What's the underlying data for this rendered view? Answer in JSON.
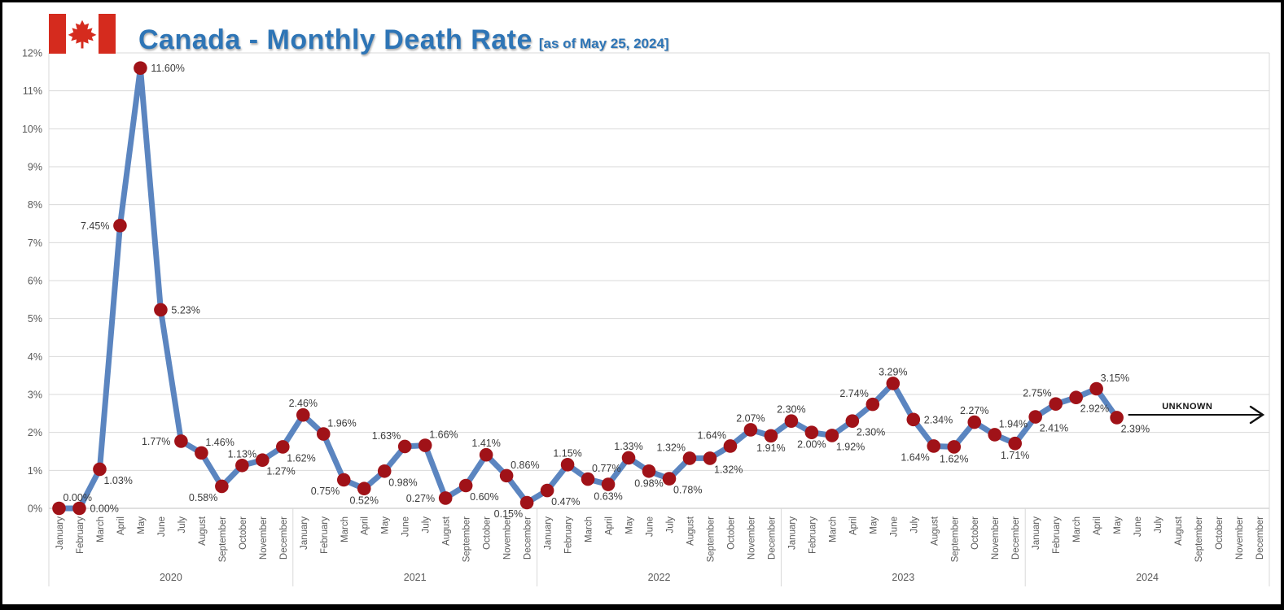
{
  "header": {
    "flag_red": "#d52b1e",
    "title_color": "#2e75b6"
  },
  "chart_data": {
    "type": "line",
    "title": "Canada - Monthly Death Rate",
    "subtitle": "[as of May 25, 2024]",
    "ylim": [
      0,
      12
    ],
    "grid": true,
    "legend": "none",
    "y_ticks": [
      "0%",
      "1%",
      "2%",
      "3%",
      "4%",
      "5%",
      "6%",
      "7%",
      "8%",
      "9%",
      "10%",
      "11%",
      "12%"
    ],
    "months": [
      "January",
      "February",
      "March",
      "April",
      "May",
      "June",
      "July",
      "August",
      "September",
      "October",
      "November",
      "December"
    ],
    "colors": {
      "line": "#5b85c0",
      "marker": "#a01218",
      "axis_text": "#595959",
      "data_label": "#3b3b3b",
      "gridline": "#d9d9d9",
      "axis_line": "#bfbfbf",
      "annotation": "#111111"
    },
    "series": [
      {
        "name": "Monthly death rate",
        "years": [
          {
            "year": "2020",
            "values": [
              0.0,
              0.0,
              1.03,
              7.45,
              11.6,
              5.23,
              1.77,
              1.46,
              0.58,
              1.13,
              1.27,
              1.62
            ],
            "labels": [
              "0.00%",
              "0.00%",
              "1.03%",
              "7.45%",
              "11.60%",
              "5.23%",
              "1.77%",
              "1.46%",
              "0.58%",
              "1.13%",
              "1.27%",
              "1.62%"
            ],
            "label_pos": [
              "ar",
              "r",
              "br",
              "l",
              "r",
              "r",
              "l",
              "ar",
              "bl",
              "a",
              "br",
              "br"
            ]
          },
          {
            "year": "2021",
            "values": [
              2.46,
              1.96,
              0.75,
              0.52,
              0.98,
              1.63,
              1.66,
              0.27,
              0.6,
              1.41,
              0.86,
              0.15
            ],
            "labels": [
              "2.46%",
              "1.96%",
              "0.75%",
              "0.52%",
              "0.98%",
              "1.63%",
              "1.66%",
              "0.27%",
              "0.60%",
              "1.41%",
              "0.86%",
              "0.15%"
            ],
            "label_pos": [
              "a",
              "ar",
              "bl",
              "b",
              "br",
              "al",
              "ar",
              "l",
              "br",
              "a",
              "ar",
              "bl"
            ]
          },
          {
            "year": "2022",
            "values": [
              0.47,
              1.15,
              0.77,
              0.63,
              1.33,
              0.98,
              0.78,
              1.32,
              1.32,
              1.64,
              2.07,
              1.91
            ],
            "labels": [
              "0.47%",
              "1.15%",
              "0.77%",
              "0.63%",
              "1.33%",
              "0.98%",
              "0.78%",
              "1.32%",
              "1.32%",
              "1.64%",
              "2.07%",
              "1.91%"
            ],
            "label_pos": [
              "br",
              "a",
              "ar",
              "b",
              "a",
              "b",
              "br",
              "al",
              "br",
              "al",
              "a",
              "b"
            ]
          },
          {
            "year": "2023",
            "values": [
              2.3,
              2.0,
              1.92,
              2.3,
              2.74,
              3.29,
              2.34,
              1.64,
              1.62,
              2.27,
              1.94,
              1.71
            ],
            "labels": [
              "2.30%",
              "2.00%",
              "1.92%",
              "2.30%",
              "2.74%",
              "3.29%",
              "2.34%",
              "1.64%",
              "1.62%",
              "2.27%",
              "1.94%",
              "1.71%"
            ],
            "label_pos": [
              "a",
              "b",
              "br",
              "br",
              "al",
              "a",
              "r",
              "bl",
              "b",
              "a",
              "ar",
              "b"
            ]
          },
          {
            "year": "2024",
            "values": [
              2.41,
              2.75,
              2.92,
              3.15,
              2.39,
              null,
              null,
              null,
              null,
              null,
              null,
              null
            ],
            "labels": [
              "2.41%",
              "2.75%",
              "2.92%",
              "3.15%",
              "2.39%",
              null,
              null,
              null,
              null,
              null,
              null,
              null
            ],
            "label_pos": [
              "br",
              "al",
              "br",
              "ar",
              "br",
              null,
              null,
              null,
              null,
              null,
              null,
              null
            ]
          }
        ]
      }
    ],
    "annotation": {
      "text": "UNKNOWN",
      "arrow": "right"
    }
  }
}
